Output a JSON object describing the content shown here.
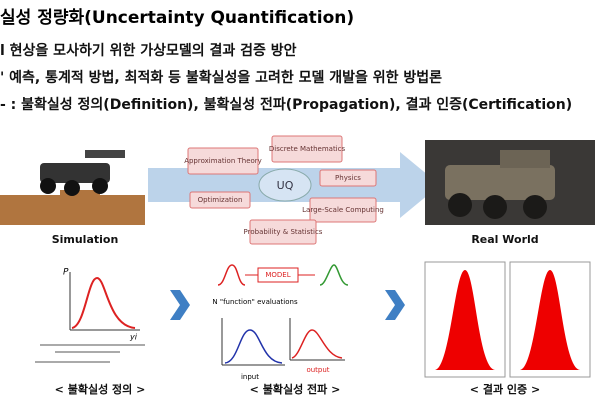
{
  "header": {
    "title": "실성 정량화(Uncertainty Quantification)"
  },
  "bullets": [
    "l 현상을 모사하기 위한 가상모델의 결과 검증 방안",
    "' 예측, 통계적 방법, 최적화 등 불확실성을 고려한 모델 개발을 위한 방법론",
    "- : 불확실성 정의(Definition), 불확실성 전파(Propagation), 결과 인증(Certification)"
  ],
  "diagram": {
    "left_label": "Simulation",
    "right_label": "Real World",
    "center": "UQ",
    "topics": [
      "Approximation Theory",
      "Discrete Mathematics",
      "Optimization",
      "Physics",
      "Large-Scale Computing",
      "Probability & Statistics"
    ]
  },
  "panels": [
    {
      "caption": "< 불확실성 정의 >",
      "axis_y": "P",
      "axis_x": "yi"
    },
    {
      "caption": "< 불확실성 전파 >",
      "model": "MODEL",
      "evaluations": "N \"function\" evaluations",
      "input": "input",
      "output": "output"
    },
    {
      "caption": "< 결과 인증 >"
    }
  ]
}
